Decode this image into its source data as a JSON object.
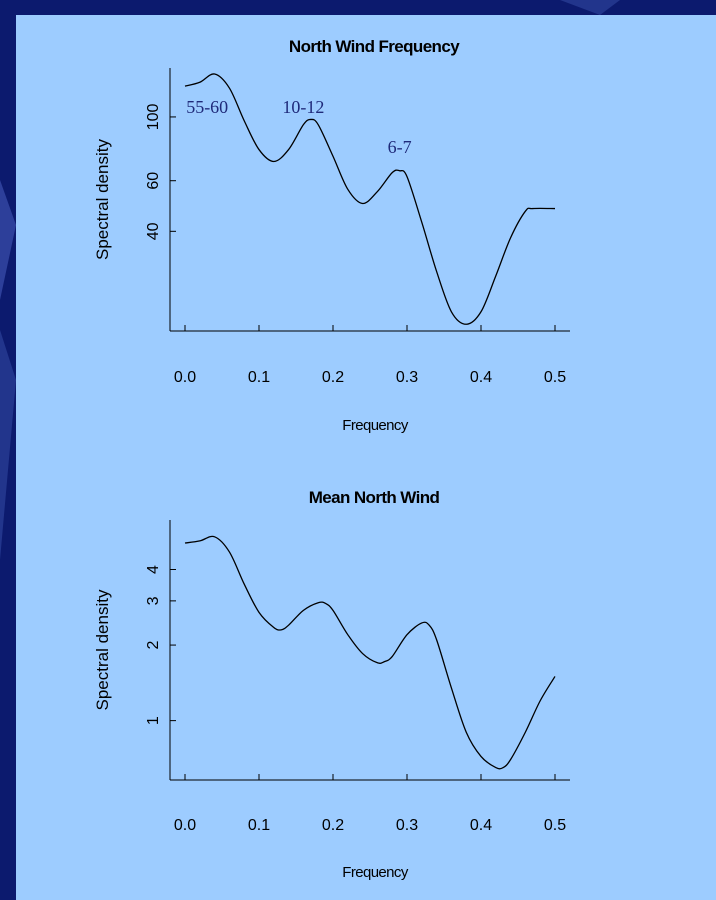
{
  "colors": {
    "slide_background": "#0c1a6e",
    "slide_decoration": "#2d3f9a",
    "panel_background": "#9dccff",
    "line": "#000000",
    "annotation": "#1f2a7a"
  },
  "chart_data": [
    {
      "type": "line",
      "title": "North Wind Frequency",
      "xlabel": "Frequency",
      "ylabel": "Spectral density",
      "xlim": [
        0.0,
        0.5
      ],
      "ylim": [
        18,
        148
      ],
      "y_scale": "log",
      "xticks": [
        0.0,
        0.1,
        0.2,
        0.3,
        0.4,
        0.5
      ],
      "xtick_labels": [
        "0.0",
        "0.1",
        "0.2",
        "0.3",
        "0.4",
        "0.5"
      ],
      "yticks": [
        40,
        60,
        100
      ],
      "ytick_labels": [
        "40",
        "60",
        "100"
      ],
      "grid": false,
      "series": [
        {
          "x": [
            0.0,
            0.02,
            0.04,
            0.06,
            0.08,
            0.1,
            0.12,
            0.14,
            0.16,
            0.17,
            0.18,
            0.2,
            0.22,
            0.24,
            0.26,
            0.28,
            0.29,
            0.3,
            0.32,
            0.34,
            0.36,
            0.38,
            0.4,
            0.42,
            0.44,
            0.46,
            0.47,
            0.5
          ],
          "y": [
            128,
            132,
            141,
            126,
            97,
            77,
            70,
            77,
            94,
            98,
            94,
            73,
            56,
            50,
            55,
            64,
            65,
            62,
            43,
            29,
            21,
            19,
            21,
            28,
            38,
            47,
            48,
            48
          ]
        }
      ],
      "annotations": [
        {
          "text": "55-60",
          "x": 0.03,
          "y": 103
        },
        {
          "text": "10-12",
          "x": 0.16,
          "y": 103
        },
        {
          "text": "6-7",
          "x": 0.29,
          "y": 75
        }
      ]
    },
    {
      "type": "line",
      "title": "Mean North Wind",
      "xlabel": "Frequency",
      "ylabel": "Spectral density",
      "xlim": [
        0.0,
        0.5
      ],
      "ylim": [
        0.58,
        6.3
      ],
      "y_scale": "log",
      "xticks": [
        0.0,
        0.1,
        0.2,
        0.3,
        0.4,
        0.5
      ],
      "xtick_labels": [
        "0.0",
        "0.1",
        "0.2",
        "0.3",
        "0.4",
        "0.5"
      ],
      "yticks": [
        1,
        2,
        3,
        4
      ],
      "ytick_labels": [
        "1",
        "2",
        "3",
        "4"
      ],
      "grid": false,
      "series": [
        {
          "x": [
            0.0,
            0.02,
            0.04,
            0.06,
            0.08,
            0.1,
            0.12,
            0.13,
            0.14,
            0.16,
            0.18,
            0.19,
            0.2,
            0.22,
            0.24,
            0.26,
            0.27,
            0.28,
            0.3,
            0.32,
            0.33,
            0.34,
            0.36,
            0.38,
            0.4,
            0.42,
            0.43,
            0.44,
            0.46,
            0.48,
            0.5
          ],
          "y": [
            5.1,
            5.2,
            5.4,
            4.7,
            3.5,
            2.7,
            2.35,
            2.3,
            2.4,
            2.75,
            2.95,
            2.93,
            2.75,
            2.2,
            1.85,
            1.7,
            1.72,
            1.8,
            2.2,
            2.45,
            2.4,
            2.1,
            1.35,
            0.9,
            0.72,
            0.65,
            0.65,
            0.7,
            0.9,
            1.2,
            1.5
          ]
        }
      ]
    }
  ]
}
